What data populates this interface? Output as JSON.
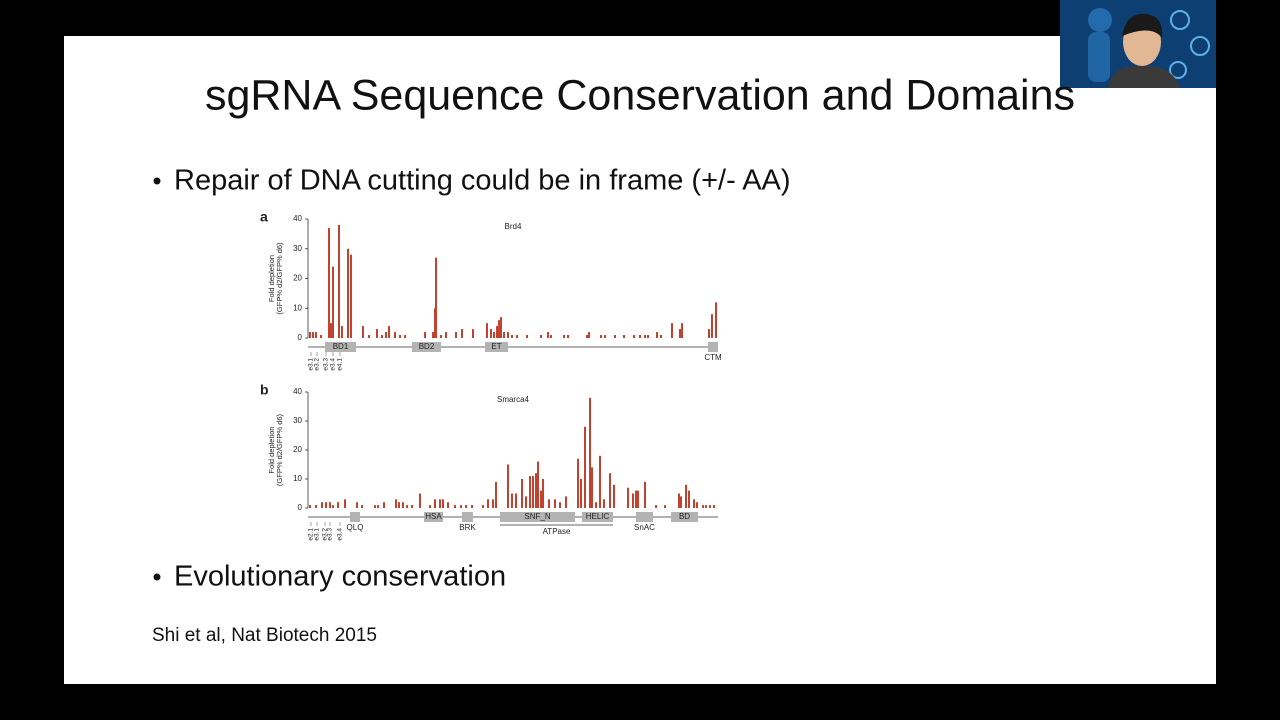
{
  "slide": {
    "title": "sgRNA Sequence Conservation and Domains",
    "bullets": [
      "Repair of DNA cutting could be in frame (+/- AA)",
      "Evolutionary conservation"
    ],
    "citation": "Shi et al, Nat Biotech 2015"
  },
  "chart_data": [
    {
      "type": "bar",
      "panel": "a",
      "title": "Brd4",
      "ylabel": [
        "Fold depletion",
        "(GFP% d2/GFP% d6)"
      ],
      "color": "#c0432f",
      "x": [
        2,
        5,
        8,
        13,
        21,
        23,
        25,
        31,
        34,
        40,
        43,
        55,
        61,
        69,
        74,
        78,
        81,
        87,
        92,
        97,
        117,
        125,
        127,
        128,
        133,
        138,
        148,
        154,
        165,
        179,
        183,
        186,
        189,
        191,
        193,
        196,
        200,
        204,
        209,
        219,
        233,
        240,
        243,
        256,
        260,
        279,
        281,
        293,
        297,
        307,
        316,
        326,
        332,
        337,
        340,
        349,
        353,
        364,
        372,
        374,
        401,
        404,
        408
      ],
      "values": [
        2,
        2,
        2,
        1,
        37,
        5,
        24,
        38,
        4,
        30,
        28,
        4,
        1,
        3,
        1,
        2,
        4,
        2,
        1,
        1,
        2,
        2,
        10,
        27,
        1,
        2,
        2,
        3,
        3,
        5,
        3,
        2,
        4,
        6,
        7,
        2,
        2,
        1,
        1,
        1,
        1,
        2,
        1,
        1,
        1,
        1,
        2,
        1,
        1,
        1,
        1,
        1,
        1,
        1,
        1,
        2,
        1,
        5,
        3,
        5,
        3,
        8,
        12
      ],
      "xlim": [
        0,
        410
      ],
      "ylim": [
        0,
        40
      ],
      "yticks": [
        0,
        10,
        20,
        30,
        40
      ],
      "domains": [
        {
          "label": "BD1",
          "start": 17,
          "end": 48,
          "label_position": "inside"
        },
        {
          "label": "BD2",
          "start": 104,
          "end": 133,
          "label_position": "inside"
        },
        {
          "label": "ET",
          "start": 177,
          "end": 200,
          "label_position": "inside"
        },
        {
          "label": "CTM",
          "start": 400,
          "end": 410,
          "label_position": "below"
        }
      ],
      "exons": [
        {
          "label": "e3.1",
          "x": 3
        },
        {
          "label": "e3.2",
          "x": 9
        },
        {
          "label": "e3.3",
          "x": 18
        },
        {
          "label": "e3.4",
          "x": 25
        },
        {
          "label": "e4.1",
          "x": 32
        }
      ]
    },
    {
      "type": "bar",
      "panel": "b",
      "title": "Smarca4",
      "ylabel": [
        "Fold depletion",
        "(GFP% d2/GFP% d6)"
      ],
      "color": "#c0432f",
      "x": [
        2,
        8,
        14,
        18,
        22,
        25,
        30,
        37,
        49,
        54,
        67,
        70,
        76,
        88,
        91,
        95,
        99,
        104,
        112,
        122,
        127,
        132,
        135,
        140,
        147,
        153,
        158,
        164,
        175,
        180,
        185,
        188,
        200,
        204,
        208,
        214,
        218,
        222,
        225,
        228,
        230,
        233,
        235,
        241,
        247,
        252,
        258,
        270,
        273,
        277,
        282,
        284,
        288,
        292,
        296,
        302,
        306,
        320,
        325,
        328,
        330,
        337,
        348,
        357,
        371,
        373,
        378,
        381,
        386,
        389,
        395,
        398,
        402,
        406
      ],
      "values": [
        1,
        1,
        2,
        2,
        2,
        1,
        2,
        3,
        2,
        1,
        1,
        1,
        2,
        3,
        2,
        2,
        1,
        1,
        5,
        1,
        3,
        3,
        3,
        2,
        1,
        1,
        1,
        1,
        1,
        3,
        3,
        9,
        15,
        5,
        5,
        10,
        4,
        11,
        11,
        12,
        16,
        6,
        10,
        3,
        3,
        2,
        4,
        17,
        10,
        28,
        38,
        14,
        2,
        18,
        3,
        12,
        8,
        7,
        5,
        6,
        6,
        9,
        1,
        1,
        5,
        4,
        8,
        6,
        3,
        2,
        1,
        1,
        1,
        1
      ],
      "xlim": [
        0,
        410
      ],
      "ylim": [
        0,
        40
      ],
      "yticks": [
        0,
        10,
        20,
        30,
        40
      ],
      "domains": [
        {
          "label": "QLQ",
          "start": 42,
          "end": 52,
          "label_position": "below"
        },
        {
          "label": "HSA",
          "start": 116,
          "end": 135,
          "label_position": "inside"
        },
        {
          "label": "BRK",
          "start": 154,
          "end": 165,
          "label_position": "below"
        },
        {
          "label": "SNF_N",
          "start": 192,
          "end": 267,
          "label_position": "inside"
        },
        {
          "label": "HELIC",
          "start": 274,
          "end": 305,
          "label_position": "inside"
        },
        {
          "label": "SnAC",
          "start": 328,
          "end": 345,
          "label_position": "below"
        },
        {
          "label": "BD",
          "start": 363,
          "end": 390,
          "label_position": "inside"
        }
      ],
      "brackets": [
        {
          "label": "ATPase",
          "start": 192,
          "end": 305
        }
      ],
      "exons": [
        {
          "label": "e2.1",
          "x": 3
        },
        {
          "label": "e3.1",
          "x": 9
        },
        {
          "label": "e3.2",
          "x": 17
        },
        {
          "label": "e3.3",
          "x": 22
        },
        {
          "label": "e3.4",
          "x": 32
        }
      ]
    }
  ]
}
